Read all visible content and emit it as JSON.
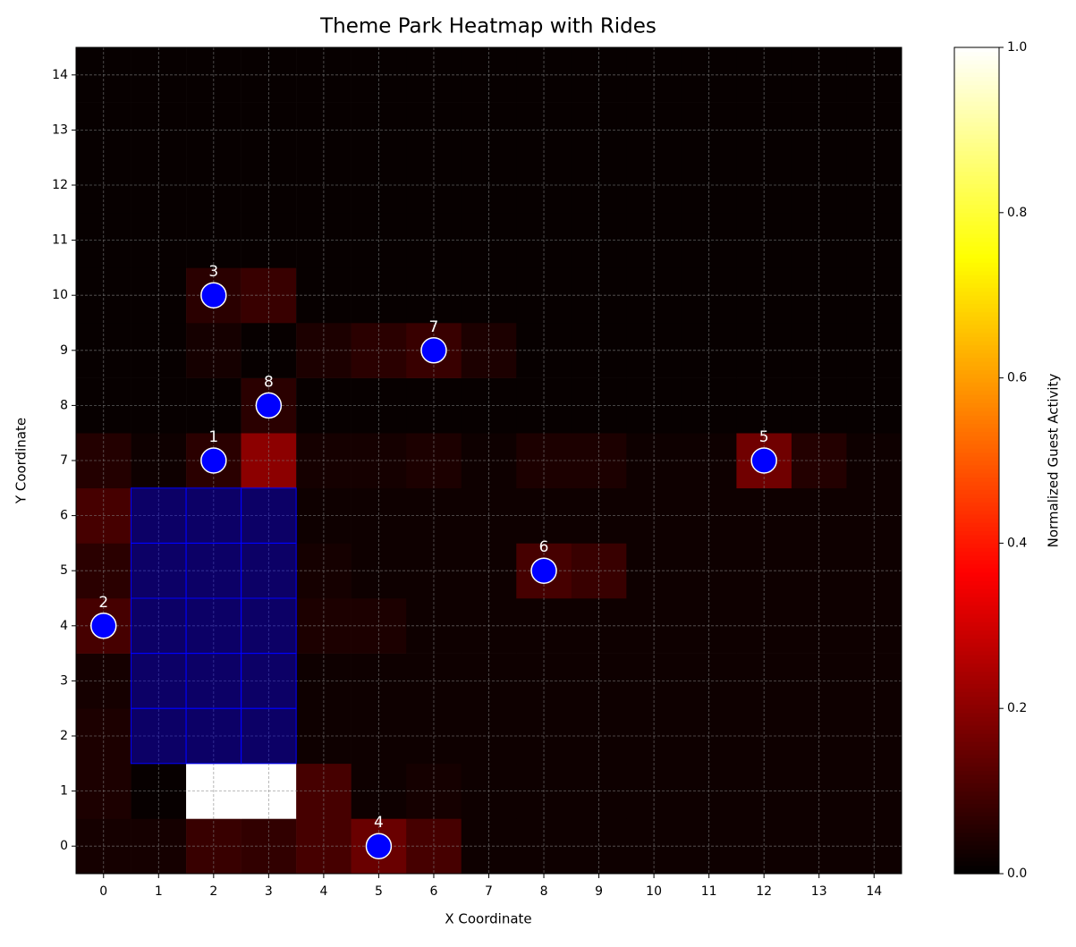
{
  "chart_data": {
    "type": "heatmap",
    "title": "Theme Park Heatmap with Rides",
    "xlabel": "X Coordinate",
    "ylabel": "Y Coordinate",
    "colorbar_label": "Normalized Guest Activity",
    "colormap": "hot",
    "xlim": [
      -0.5,
      14.5
    ],
    "ylim": [
      -0.5,
      14.5
    ],
    "xticks": [
      0,
      1,
      2,
      3,
      4,
      5,
      6,
      7,
      8,
      9,
      10,
      11,
      12,
      13,
      14
    ],
    "yticks": [
      0,
      1,
      2,
      3,
      4,
      5,
      6,
      7,
      8,
      9,
      10,
      11,
      12,
      13,
      14
    ],
    "grid": true,
    "zlim": [
      0,
      1
    ],
    "zticks": [
      {
        "value": 0,
        "label": "0.0"
      },
      {
        "value": 0.2,
        "label": "0.2"
      },
      {
        "value": 0.4,
        "label": "0.4"
      },
      {
        "value": 0.6,
        "label": "0.6"
      },
      {
        "value": 0.8,
        "label": "0.8"
      },
      {
        "value": 1,
        "label": "1.0"
      }
    ],
    "z": [
      [
        0.03,
        0.03,
        0.08,
        0.07,
        0.1,
        0.15,
        0.1,
        0.02,
        0.02,
        0.02,
        0.02,
        0.02,
        0.02,
        0.02,
        0.02
      ],
      [
        0.04,
        0.01,
        1.0,
        1.0,
        0.1,
        0.02,
        0.03,
        0.02,
        0.02,
        0.02,
        0.02,
        0.02,
        0.02,
        0.02,
        0.02
      ],
      [
        0.04,
        0.03,
        0.03,
        0.03,
        0.02,
        0.02,
        0.02,
        0.02,
        0.02,
        0.02,
        0.02,
        0.02,
        0.02,
        0.02,
        0.02
      ],
      [
        0.03,
        0.03,
        0.03,
        0.03,
        0.02,
        0.02,
        0.02,
        0.02,
        0.02,
        0.02,
        0.02,
        0.02,
        0.02,
        0.02,
        0.02
      ],
      [
        0.1,
        0.03,
        0.03,
        0.03,
        0.04,
        0.04,
        0.02,
        0.02,
        0.02,
        0.02,
        0.02,
        0.02,
        0.02,
        0.02,
        0.02
      ],
      [
        0.06,
        0.03,
        0.03,
        0.03,
        0.03,
        0.02,
        0.02,
        0.02,
        0.1,
        0.08,
        0.02,
        0.02,
        0.02,
        0.02,
        0.02
      ],
      [
        0.1,
        0.03,
        0.03,
        0.03,
        0.02,
        0.02,
        0.02,
        0.02,
        0.02,
        0.02,
        0.02,
        0.02,
        0.02,
        0.02,
        0.02
      ],
      [
        0.05,
        0.02,
        0.06,
        0.2,
        0.03,
        0.03,
        0.04,
        0.02,
        0.04,
        0.04,
        0.02,
        0.02,
        0.16,
        0.05,
        0.02
      ],
      [
        0.01,
        0.01,
        0.01,
        0.06,
        0.01,
        0.01,
        0.01,
        0.01,
        0.01,
        0.01,
        0.01,
        0.01,
        0.01,
        0.01,
        0.01
      ],
      [
        0.01,
        0.01,
        0.03,
        0.01,
        0.04,
        0.06,
        0.08,
        0.04,
        0.01,
        0.01,
        0.01,
        0.01,
        0.01,
        0.01,
        0.01
      ],
      [
        0.01,
        0.01,
        0.06,
        0.08,
        0.01,
        0.01,
        0.01,
        0.01,
        0.01,
        0.01,
        0.01,
        0.01,
        0.01,
        0.01,
        0.01
      ],
      [
        0.01,
        0.01,
        0.01,
        0.01,
        0.01,
        0.01,
        0.01,
        0.01,
        0.01,
        0.01,
        0.01,
        0.01,
        0.01,
        0.01,
        0.01
      ],
      [
        0.01,
        0.01,
        0.01,
        0.01,
        0.01,
        0.01,
        0.01,
        0.01,
        0.01,
        0.01,
        0.01,
        0.01,
        0.01,
        0.01,
        0.01
      ],
      [
        0.01,
        0.01,
        0.01,
        0.01,
        0.01,
        0.01,
        0.01,
        0.01,
        0.01,
        0.01,
        0.01,
        0.01,
        0.01,
        0.01,
        0.01
      ],
      [
        0.01,
        0.01,
        0.01,
        0.01,
        0.01,
        0.01,
        0.01,
        0.01,
        0.01,
        0.01,
        0.01,
        0.01,
        0.01,
        0.01,
        0.01
      ]
    ],
    "overlay": {
      "xlim": [
        0.5,
        3.5
      ],
      "ylim": [
        1.5,
        6.5
      ],
      "color": "blue",
      "alpha": 0.4
    },
    "points": {
      "color": "blue",
      "x": [
        2,
        0,
        2,
        5,
        12,
        8,
        6,
        3
      ],
      "y": [
        7,
        4,
        10,
        0,
        7,
        5,
        9,
        8
      ],
      "labels": [
        "1",
        "2",
        "3",
        "4",
        "5",
        "6",
        "7",
        "8"
      ]
    }
  }
}
